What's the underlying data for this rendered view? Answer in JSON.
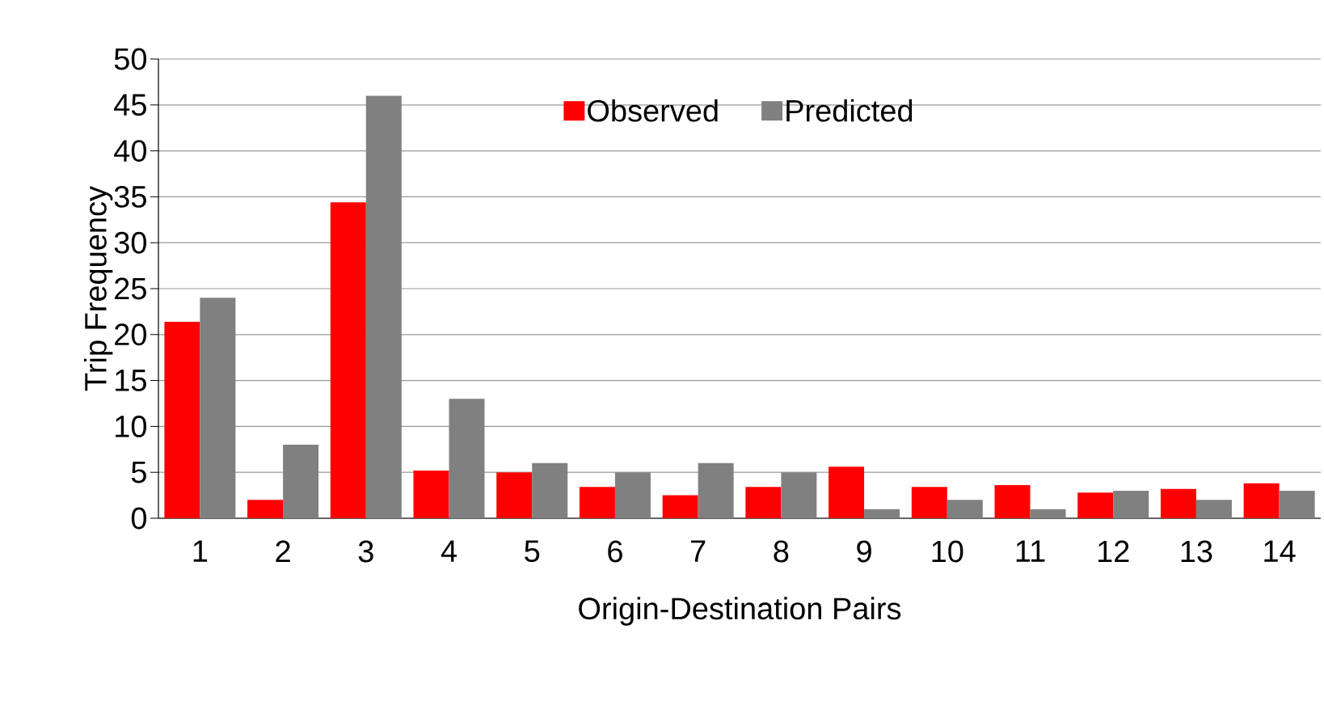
{
  "chart_data": {
    "type": "bar",
    "xlabel": "Origin-Destination Pairs",
    "ylabel": "Trip Frequency",
    "categories": [
      "1",
      "2",
      "3",
      "4",
      "5",
      "6",
      "7",
      "8",
      "9",
      "10",
      "11",
      "12",
      "13",
      "14"
    ],
    "series": [
      {
        "name": "Observed",
        "color": "#ff0000",
        "values": [
          21.4,
          2,
          34.4,
          5.2,
          5,
          3.4,
          2.5,
          3.4,
          5.6,
          3.4,
          3.6,
          2.8,
          3.2,
          3.8
        ]
      },
      {
        "name": "Predicted",
        "color": "#808080",
        "values": [
          24,
          8,
          46,
          13,
          6,
          5,
          6,
          5,
          1,
          2,
          1,
          3,
          2,
          3
        ]
      }
    ],
    "ylim": [
      0,
      50
    ],
    "yticks": [
      0,
      5,
      10,
      15,
      20,
      25,
      30,
      35,
      40,
      45,
      50
    ],
    "grid": "y",
    "legend": "top"
  }
}
